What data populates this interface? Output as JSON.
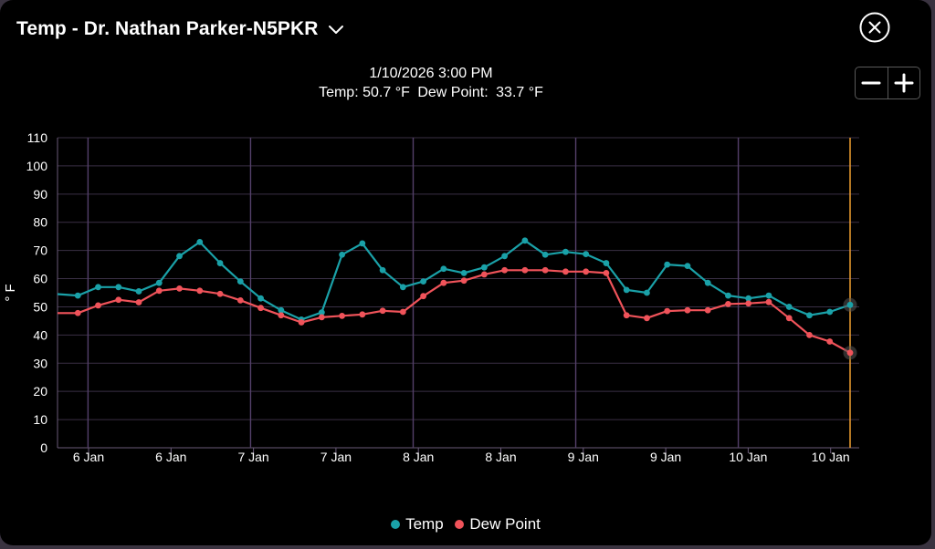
{
  "header": {
    "title": "Temp - Dr. Nathan Parker-N5PKR"
  },
  "readout": {
    "datetime": "1/10/2026 3:00 PM",
    "temp_label": "Temp:",
    "temp_value": "50.7 °F",
    "dew_label": "Dew Point:",
    "dew_value": "33.7 °F"
  },
  "zoom": {
    "minus": "−",
    "plus": "+"
  },
  "colors": {
    "temp": "#1aa1a8",
    "dew": "#f0535a",
    "cursor": "#f0a030",
    "grid": "#3a2f45",
    "accent_grid": "#54406a"
  },
  "chart_data": {
    "type": "line",
    "ylabel": "° F",
    "ylim": [
      0,
      110
    ],
    "yticks": [
      0,
      10,
      20,
      30,
      40,
      50,
      60,
      70,
      80,
      90,
      100,
      110
    ],
    "xticks": [
      "6 Jan",
      "6 Jan",
      "7 Jan",
      "7 Jan",
      "8 Jan",
      "8 Jan",
      "9 Jan",
      "9 Jan",
      "10 Jan",
      "10 Jan"
    ],
    "grid": true,
    "legend_position": "bottom",
    "series": [
      {
        "name": "Temp",
        "values": [
          54.5,
          54,
          57,
          57,
          55.5,
          58.5,
          68,
          73,
          65.5,
          59,
          53,
          48.8,
          45.5,
          48,
          68.5,
          72.5,
          63,
          57,
          59,
          63.5,
          62,
          64,
          68,
          73.5,
          68.5,
          69.5,
          68.7,
          65.5,
          56,
          55,
          65,
          64.5,
          58.5,
          54,
          53,
          54,
          50,
          47,
          48.2,
          50.7
        ]
      },
      {
        "name": "Dew Point",
        "values": [
          47.8,
          47.8,
          50.5,
          52.5,
          51.6,
          55.7,
          56.5,
          55.7,
          54.6,
          52.3,
          49.6,
          47,
          44.5,
          46.3,
          46.8,
          47.3,
          48.6,
          48.2,
          53.8,
          58.5,
          59.3,
          61.5,
          63,
          63,
          63,
          62.5,
          62.5,
          62,
          47,
          46,
          48.5,
          48.8,
          48.8,
          51,
          51.2,
          51.7,
          46,
          40,
          37.7,
          33.7
        ]
      }
    ]
  }
}
